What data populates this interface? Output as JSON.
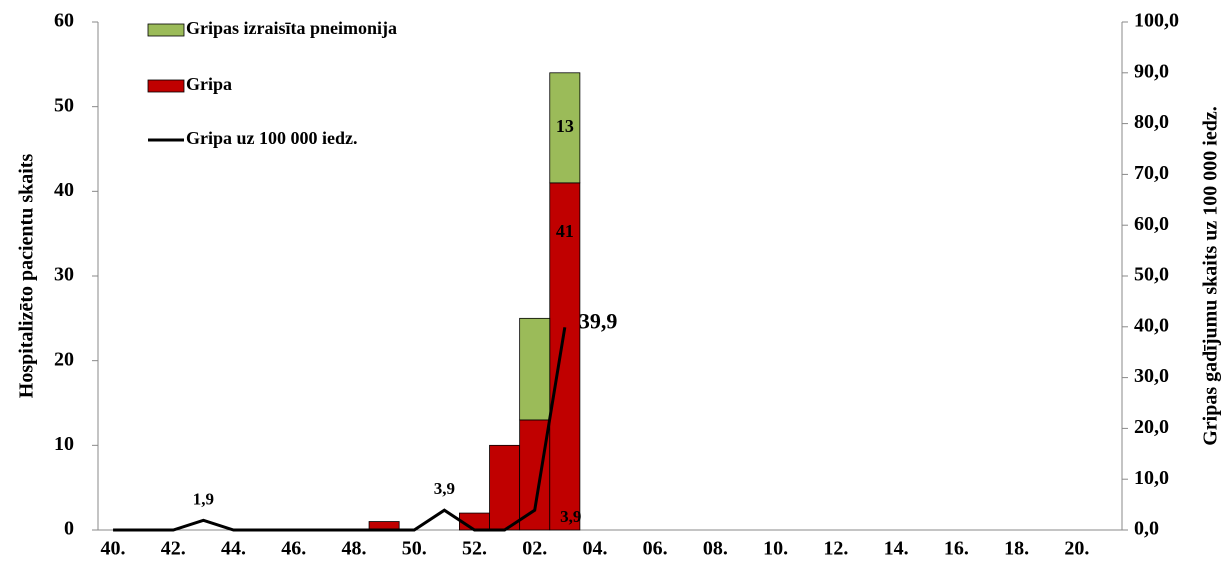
{
  "chart_data": {
    "type": "bar",
    "y_label": "Hospitalizēto pacientu skaits",
    "y2_label": "Gripas gadījumu skaits uz 100 000 iedz.",
    "categories": [
      "40.",
      null,
      "42.",
      null,
      "44.",
      null,
      "46.",
      null,
      "48.",
      null,
      "50.",
      null,
      "52.",
      null,
      "02.",
      null,
      "04.",
      null,
      "06.",
      null,
      "08.",
      null,
      "10.",
      null,
      "12.",
      null,
      "14.",
      null,
      "16.",
      null,
      "18.",
      null,
      "20.",
      null
    ],
    "series": [
      {
        "name": "Gripas izraisīta pneimonija",
        "type": "bar",
        "color": "#9bbb59",
        "values": [
          0,
          0,
          0,
          0,
          0,
          0,
          0,
          0,
          0,
          0,
          0,
          0,
          0,
          0,
          12,
          13,
          null,
          null,
          null,
          null,
          null,
          null,
          null,
          null,
          null,
          null,
          null,
          null,
          null,
          null,
          null,
          null,
          null,
          null
        ],
        "value_labels": [
          null,
          null,
          null,
          null,
          null,
          null,
          null,
          null,
          null,
          null,
          null,
          null,
          null,
          null,
          null,
          "13",
          null,
          null,
          null,
          null,
          null,
          null,
          null,
          null,
          null,
          null,
          null,
          null,
          null,
          null,
          null,
          null,
          null,
          null
        ]
      },
      {
        "name": "Gripa",
        "type": "bar",
        "color": "#c00000",
        "values": [
          0,
          0,
          0,
          0,
          0,
          0,
          0,
          0,
          0,
          1,
          0,
          0,
          2,
          10,
          13,
          41,
          null,
          null,
          null,
          null,
          null,
          null,
          null,
          null,
          null,
          null,
          null,
          null,
          null,
          null,
          null,
          null,
          null,
          null
        ],
        "value_labels": [
          null,
          null,
          null,
          null,
          null,
          null,
          null,
          null,
          null,
          null,
          null,
          null,
          null,
          null,
          null,
          "41",
          null,
          null,
          null,
          null,
          null,
          null,
          null,
          null,
          null,
          null,
          null,
          null,
          null,
          null,
          null,
          null,
          null,
          null
        ]
      },
      {
        "name": "Gripa uz 100 000 iedz.",
        "type": "line",
        "axis": "y2",
        "color": "#000000",
        "values": [
          0,
          0,
          0,
          1.9,
          0,
          0,
          0,
          0,
          0,
          0,
          0,
          3.9,
          0,
          0,
          3.9,
          39.9,
          null,
          null,
          null,
          null,
          null,
          null,
          null,
          null,
          null,
          null,
          null,
          null,
          null,
          null,
          null,
          null,
          null,
          null
        ],
        "value_labels": [
          null,
          null,
          null,
          "1,9",
          null,
          null,
          null,
          null,
          null,
          null,
          null,
          "3,9",
          null,
          null,
          "3,9",
          "39,9",
          null,
          null,
          null,
          null,
          null,
          null,
          null,
          null,
          null,
          null,
          null,
          null,
          null,
          null,
          null,
          null,
          null,
          null
        ]
      }
    ],
    "ylim": [
      0,
      60
    ],
    "yticks": [
      0,
      10,
      20,
      30,
      40,
      50,
      60
    ],
    "y2lim": [
      0,
      100
    ],
    "y2ticks": [
      {
        "value": 0,
        "label": "0,0"
      },
      {
        "value": 10,
        "label": "10,0"
      },
      {
        "value": 20,
        "label": "20,0"
      },
      {
        "value": 30,
        "label": "30,0"
      },
      {
        "value": 40,
        "label": "40,0"
      },
      {
        "value": 50,
        "label": "50,0"
      },
      {
        "value": 60,
        "label": "60,0"
      },
      {
        "value": 70,
        "label": "70,0"
      },
      {
        "value": 80,
        "label": "80,0"
      },
      {
        "value": 90,
        "label": "90,0"
      },
      {
        "value": 100,
        "label": "100,0"
      }
    ],
    "grid": false,
    "legend": "upper left"
  }
}
